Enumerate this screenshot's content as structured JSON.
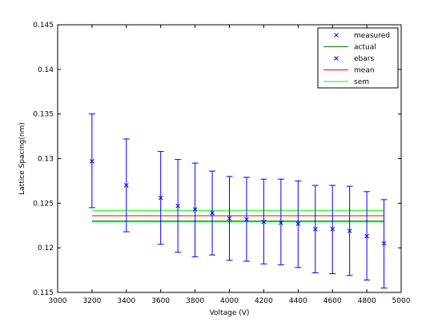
{
  "chart_data": {
    "type": "scatter",
    "xlabel": "Voltage (V)",
    "ylabel": "Lattice Spacing(nm)",
    "xlim": [
      3000,
      5000
    ],
    "ylim": [
      0.115,
      0.145
    ],
    "xticks": [
      "3000",
      "3200",
      "3400",
      "3600",
      "3800",
      "4000",
      "4200",
      "4400",
      "4600",
      "4800",
      "5000"
    ],
    "yticks": [
      "0.115",
      "0.12",
      "0.125",
      "0.13",
      "0.135",
      "0.14",
      "0.145"
    ],
    "grid": false,
    "legend_position": "top-right",
    "legend": [
      {
        "label": "measured",
        "kind": "marker",
        "color": "#0000ff"
      },
      {
        "label": "actual",
        "kind": "line",
        "color": "#008000"
      },
      {
        "label": "ebars",
        "kind": "marker",
        "color": "#0000ff"
      },
      {
        "label": "mean",
        "kind": "line",
        "color": "#ff0000"
      },
      {
        "label": "sem",
        "kind": "line",
        "color": "#00ff00"
      }
    ],
    "measured": {
      "x": [
        3200,
        3400,
        3600,
        3700,
        3800,
        3900,
        4000,
        4100,
        4200,
        4300,
        4400,
        4500,
        4600,
        4700,
        4800,
        4900
      ],
      "y": [
        0.1297,
        0.127,
        0.1256,
        0.1247,
        0.1243,
        0.1239,
        0.1233,
        0.1232,
        0.1229,
        0.1228,
        0.1227,
        0.1221,
        0.1221,
        0.1219,
        0.1213,
        0.1205
      ],
      "err_low": [
        0.1245,
        0.1218,
        0.1204,
        0.1195,
        0.119,
        0.1192,
        0.1186,
        0.1185,
        0.1182,
        0.1181,
        0.1178,
        0.1172,
        0.1171,
        0.1169,
        0.1164,
        0.1155
      ],
      "err_high": [
        0.135,
        0.1322,
        0.1308,
        0.1299,
        0.1295,
        0.1286,
        0.128,
        0.1279,
        0.1277,
        0.1277,
        0.1275,
        0.127,
        0.127,
        0.1269,
        0.1263,
        0.1254
      ]
    },
    "actual": 0.123,
    "mean": 0.1236,
    "sem": [
      0.1229,
      0.1242
    ],
    "colors": {
      "measured": "#0000ff",
      "ebars": "#0000ff",
      "actual": "#008000",
      "mean": "#ff0000",
      "sem": "#00ff00"
    }
  }
}
